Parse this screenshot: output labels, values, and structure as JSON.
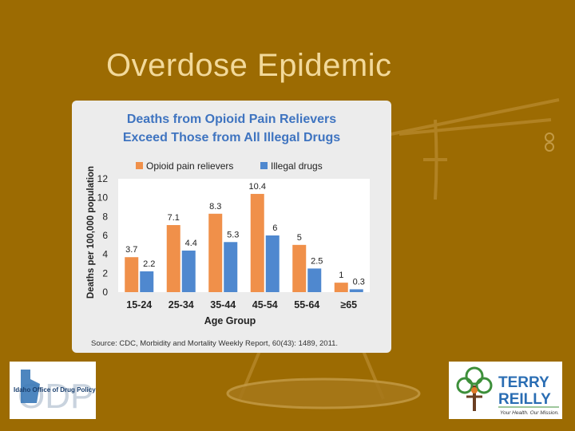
{
  "slide": {
    "title": "Overdose Epidemic"
  },
  "colors": {
    "background": "#9c6b02",
    "title": "#f2d99a",
    "opioid": "#f0904a",
    "illegal": "#4f88cf",
    "chart_title": "#3f74c0"
  },
  "chart_data": {
    "type": "bar",
    "title": "Deaths from Opioid Pain Relievers",
    "subtitle": "Exceed Those from All Illegal Drugs",
    "xlabel": "Age Group",
    "ylabel": "Deaths per 100,000 population",
    "categories": [
      "15-24",
      "25-34",
      "35-44",
      "45-54",
      "55-64",
      "≥65"
    ],
    "series": [
      {
        "name": "Opioid pain relievers",
        "values": [
          3.7,
          7.1,
          8.3,
          10.4,
          5,
          1
        ],
        "labels": [
          "3.7",
          "7.1",
          "8.3",
          "10.4",
          "5",
          "1"
        ],
        "color": "#f0904a"
      },
      {
        "name": "Illegal drugs",
        "values": [
          2.2,
          4.4,
          5.3,
          6,
          2.5,
          0.3
        ],
        "labels": [
          "2.2",
          "4.4",
          "5.3",
          "6",
          "2.5",
          "0.3"
        ],
        "color": "#4f88cf"
      }
    ],
    "yticks": [
      "0",
      "2",
      "4",
      "6",
      "8",
      "10",
      "12"
    ],
    "ylim": [
      0,
      12
    ],
    "grid": false,
    "legend": "top",
    "source": "Source: CDC, Morbidity and Mortality Weekly Report, 60(43): 1489, 2011."
  },
  "logos": {
    "left_text": "Idaho Office of Drug Policy",
    "left_mark": "ODP",
    "right_name_1": "TERRY",
    "right_name_2": "REILLY",
    "right_tagline": "Your Health. Our Mission."
  }
}
